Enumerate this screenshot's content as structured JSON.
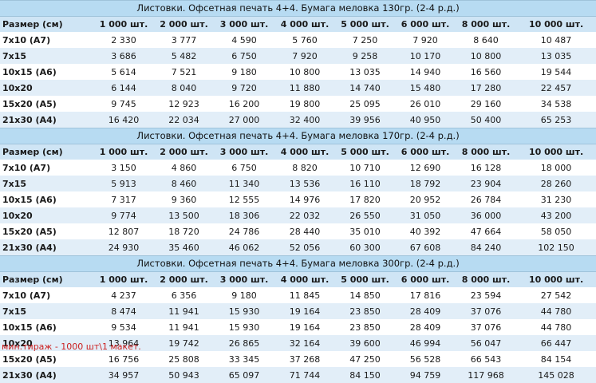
{
  "columns": {
    "size_label": "Размер (см)",
    "quantities": [
      "1 000 шт.",
      "2 000 шт.",
      "3 000 шт.",
      "4 000 шт.",
      "5 000 шт.",
      "6 000 шт.",
      "8 000 шт.",
      "10 000 шт."
    ]
  },
  "sections": [
    {
      "title": "Листовки. Офсетная печать 4+4. Бумага меловка 130гр. (2-4 р.д.)",
      "rows": [
        {
          "size": "7x10 (А7)",
          "prices": [
            "2 330",
            "3 777",
            "4 590",
            "5 760",
            "7 250",
            "7 920",
            "8 640",
            "10 487"
          ]
        },
        {
          "size": "7x15",
          "prices": [
            "3 686",
            "5 482",
            "6 750",
            "7 920",
            "9 258",
            "10 170",
            "10 800",
            "13 035"
          ]
        },
        {
          "size": "10x15 (А6)",
          "prices": [
            "5 614",
            "7 521",
            "9 180",
            "10 800",
            "13 035",
            "14 940",
            "16 560",
            "19 544"
          ]
        },
        {
          "size": "10x20",
          "prices": [
            "6 144",
            "8 040",
            "9 720",
            "11 880",
            "14 740",
            "15 480",
            "17 280",
            "22 457"
          ]
        },
        {
          "size": "15x20 (А5)",
          "prices": [
            "9 745",
            "12 923",
            "16 200",
            "19 800",
            "25 095",
            "26 010",
            "29 160",
            "34 538"
          ]
        },
        {
          "size": "21x30 (А4)",
          "prices": [
            "16 420",
            "22 034",
            "27 000",
            "32 400",
            "39 956",
            "40 950",
            "50 400",
            "65 253"
          ]
        }
      ]
    },
    {
      "title": "Листовки. Офсетная печать 4+4. Бумага меловка 170гр. (2-4 р.д.)",
      "rows": [
        {
          "size": "7x10 (А7)",
          "prices": [
            "3 150",
            "4 860",
            "6 750",
            "8 820",
            "10 710",
            "12 690",
            "16 128",
            "18 000"
          ]
        },
        {
          "size": "7x15",
          "prices": [
            "5 913",
            "8 460",
            "11 340",
            "13 536",
            "16 110",
            "18 792",
            "23 904",
            "28 260"
          ]
        },
        {
          "size": "10x15 (А6)",
          "prices": [
            "7 317",
            "9 360",
            "12 555",
            "14 976",
            "17 820",
            "20 952",
            "26 784",
            "31 230"
          ]
        },
        {
          "size": "10x20",
          "prices": [
            "9 774",
            "13 500",
            "18 306",
            "22 032",
            "26 550",
            "31 050",
            "36 000",
            "43 200"
          ]
        },
        {
          "size": "15x20 (А5)",
          "prices": [
            "12 807",
            "18 720",
            "24 786",
            "28 440",
            "35 010",
            "40 392",
            "47 664",
            "58 050"
          ]
        },
        {
          "size": "21x30 (А4)",
          "prices": [
            "24 930",
            "35 460",
            "46 062",
            "52 056",
            "60 300",
            "67 608",
            "84 240",
            "102 150"
          ]
        }
      ]
    },
    {
      "title": "Листовки. Офсетная печать 4+4. Бумага меловка 300гр. (2-4 р.д.)",
      "rows": [
        {
          "size": "7x10 (А7)",
          "prices": [
            "4 237",
            "6 356",
            "9 180",
            "11 845",
            "14 850",
            "17 816",
            "23 594",
            "27 542"
          ]
        },
        {
          "size": "7x15",
          "prices": [
            "8 474",
            "11 941",
            "15 930",
            "19 164",
            "23 850",
            "28 409",
            "37 076",
            "44 780"
          ]
        },
        {
          "size": "10x15 (А6)",
          "prices": [
            "9 534",
            "11 941",
            "15 930",
            "19 164",
            "23 850",
            "28 409",
            "37 076",
            "44 780"
          ]
        },
        {
          "size": "10x20",
          "prices": [
            "13 964",
            "19 742",
            "26 865",
            "32 164",
            "39 600",
            "46 994",
            "56 047",
            "66 447"
          ]
        },
        {
          "size": "15x20 (А5)",
          "prices": [
            "16 756",
            "25 808",
            "33 345",
            "37 268",
            "47 250",
            "56 528",
            "66 543",
            "84 154"
          ]
        },
        {
          "size": "21x30 (А4)",
          "prices": [
            "34 957",
            "50 943",
            "65 097",
            "71 744",
            "84 150",
            "94 759",
            "117 968",
            "145 028"
          ]
        }
      ]
    }
  ],
  "footnote": "мин.тираж - 1000 шт\\1 макет."
}
